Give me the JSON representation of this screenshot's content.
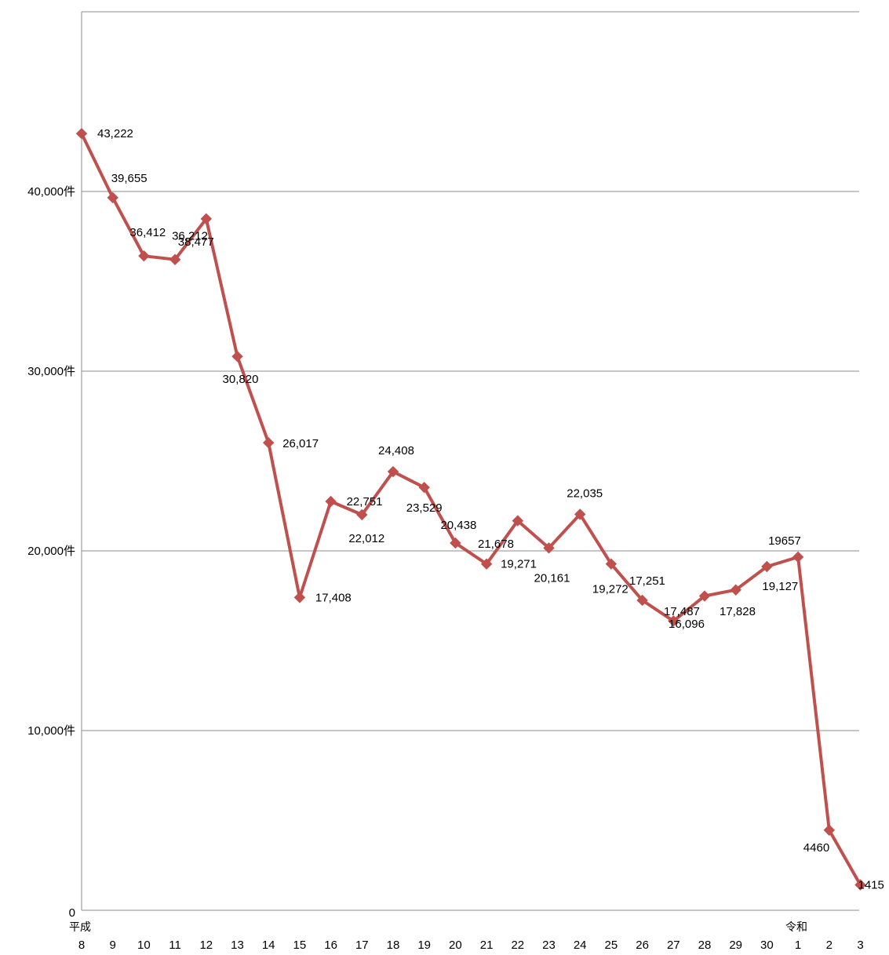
{
  "chart_data": {
    "type": "line",
    "title": "",
    "xlabel": "",
    "ylabel": "",
    "ylim": [
      0,
      48000
    ],
    "yticks": [
      {
        "value": 0,
        "label": "0"
      },
      {
        "value": 10000,
        "label": "10,000件"
      },
      {
        "value": 20000,
        "label": "20,000件"
      },
      {
        "value": 30000,
        "label": "30,000件"
      },
      {
        "value": 40000,
        "label": "40,000件"
      }
    ],
    "grid": true,
    "legend": "none",
    "line_color": "#c0504d",
    "x_era_labels": [
      {
        "index": 0,
        "label": "平成"
      },
      {
        "index": 24,
        "label": "令和"
      }
    ],
    "categories": [
      "8",
      "9",
      "10",
      "11",
      "12",
      "13",
      "14",
      "15",
      "16",
      "17",
      "18",
      "19",
      "20",
      "21",
      "22",
      "23",
      "24",
      "25",
      "26",
      "27",
      "28",
      "29",
      "30",
      "1",
      "2",
      "3"
    ],
    "series": [
      {
        "values": [
          43222,
          39655,
          36412,
          36212,
          38477,
          30820,
          26017,
          17408,
          22751,
          22012,
          24408,
          23529,
          20438,
          19271,
          21678,
          20161,
          22035,
          19272,
          17251,
          16096,
          17487,
          17828,
          19127,
          19657,
          4460,
          1415
        ],
        "labels": [
          "43,222",
          "39,655",
          "36,412",
          "36,212",
          "38,477",
          "30,820",
          "26,017",
          "17,408",
          "22,751",
          "22,012",
          "24,408",
          "23,529",
          "20,438",
          "19,271",
          "21,678",
          "20,161",
          "22,035",
          "19,272",
          "17,251",
          "16,096",
          "17,487",
          "17,828",
          "19,127",
          "19657",
          "4460",
          "1415"
        ]
      }
    ]
  }
}
